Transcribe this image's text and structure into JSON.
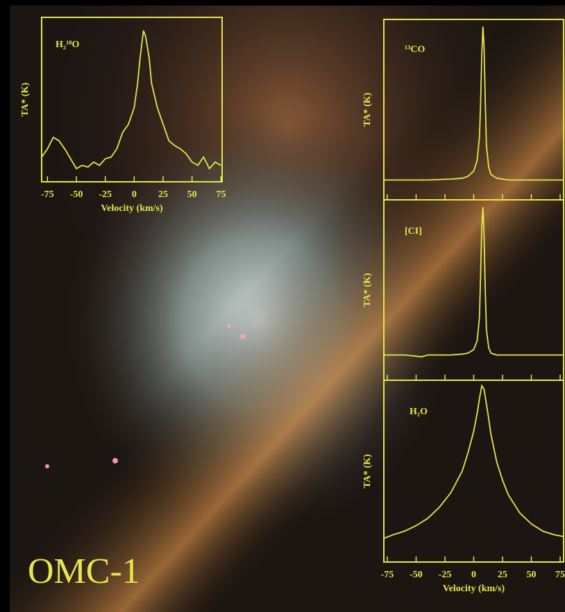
{
  "label": "OMC-1",
  "chart_data": [
    {
      "type": "line",
      "title": "H₂¹⁸O",
      "x_label": "Velocity (km/s)",
      "y_label": "TA* (K)",
      "color": "#e6e64c",
      "xlim": [
        -80,
        76
      ],
      "ylim": [
        0,
        1
      ],
      "xticks": [
        -75,
        -50,
        -25,
        0,
        25,
        50,
        75
      ],
      "x": [
        -80,
        -75,
        -70,
        -65,
        -60,
        -55,
        -50,
        -45,
        -40,
        -35,
        -30,
        -25,
        -20,
        -15,
        -10,
        -5,
        0,
        3,
        5,
        8,
        10,
        13,
        15,
        20,
        25,
        30,
        35,
        40,
        45,
        50,
        55,
        60,
        65,
        70,
        75
      ],
      "values": [
        0.15,
        0.2,
        0.27,
        0.25,
        0.2,
        0.14,
        0.08,
        0.1,
        0.09,
        0.12,
        0.1,
        0.14,
        0.15,
        0.2,
        0.3,
        0.35,
        0.45,
        0.6,
        0.75,
        0.92,
        0.88,
        0.75,
        0.6,
        0.45,
        0.35,
        0.25,
        0.22,
        0.2,
        0.17,
        0.12,
        0.1,
        0.15,
        0.08,
        0.12,
        0.1
      ]
    },
    {
      "type": "line",
      "title": "¹³CO",
      "y_label": "TA* (K)",
      "color": "#e6e64c",
      "xlim": [
        -78,
        78
      ],
      "ylim": [
        0,
        1
      ],
      "xticks": [
        -75,
        -50,
        -25,
        0,
        25,
        50,
        75
      ],
      "x": [
        -78,
        -60,
        -40,
        -20,
        -10,
        -5,
        0,
        3,
        5,
        6,
        7,
        8,
        9,
        10,
        11,
        13,
        15,
        20,
        30,
        50,
        78
      ],
      "values": [
        0.11,
        0.11,
        0.11,
        0.115,
        0.12,
        0.13,
        0.16,
        0.22,
        0.35,
        0.55,
        0.8,
        0.96,
        0.85,
        0.55,
        0.3,
        0.18,
        0.14,
        0.12,
        0.11,
        0.11,
        0.11
      ]
    },
    {
      "type": "line",
      "title": "[CI]",
      "y_label": "TA* (K)",
      "color": "#e6e64c",
      "xlim": [
        -78,
        78
      ],
      "ylim": [
        0,
        1
      ],
      "xticks": [
        -75,
        -50,
        -25,
        0,
        25,
        50,
        75
      ],
      "x": [
        -78,
        -60,
        -45,
        -40,
        -20,
        -10,
        -5,
        0,
        3,
        5,
        6,
        7,
        8,
        9,
        10,
        11,
        13,
        15,
        20,
        30,
        50,
        78
      ],
      "values": [
        0.14,
        0.14,
        0.13,
        0.14,
        0.14,
        0.145,
        0.15,
        0.17,
        0.22,
        0.35,
        0.6,
        0.85,
        0.96,
        0.8,
        0.5,
        0.28,
        0.18,
        0.15,
        0.14,
        0.14,
        0.14,
        0.14
      ]
    },
    {
      "type": "line",
      "title": "H₂O",
      "x_label": "Velocity (km/s)",
      "y_label": "TA* (K)",
      "color": "#e6e64c",
      "xlim": [
        -78,
        78
      ],
      "ylim": [
        0,
        1
      ],
      "xticks": [
        -75,
        -50,
        -25,
        0,
        25,
        50,
        75
      ],
      "x": [
        -78,
        -70,
        -60,
        -50,
        -40,
        -30,
        -20,
        -10,
        -5,
        0,
        3,
        5,
        7,
        9,
        12,
        15,
        20,
        25,
        30,
        40,
        50,
        60,
        70,
        78
      ],
      "values": [
        0.13,
        0.15,
        0.17,
        0.2,
        0.24,
        0.3,
        0.38,
        0.5,
        0.6,
        0.72,
        0.82,
        0.9,
        0.97,
        0.95,
        0.83,
        0.7,
        0.55,
        0.45,
        0.37,
        0.27,
        0.21,
        0.17,
        0.15,
        0.14
      ]
    }
  ]
}
